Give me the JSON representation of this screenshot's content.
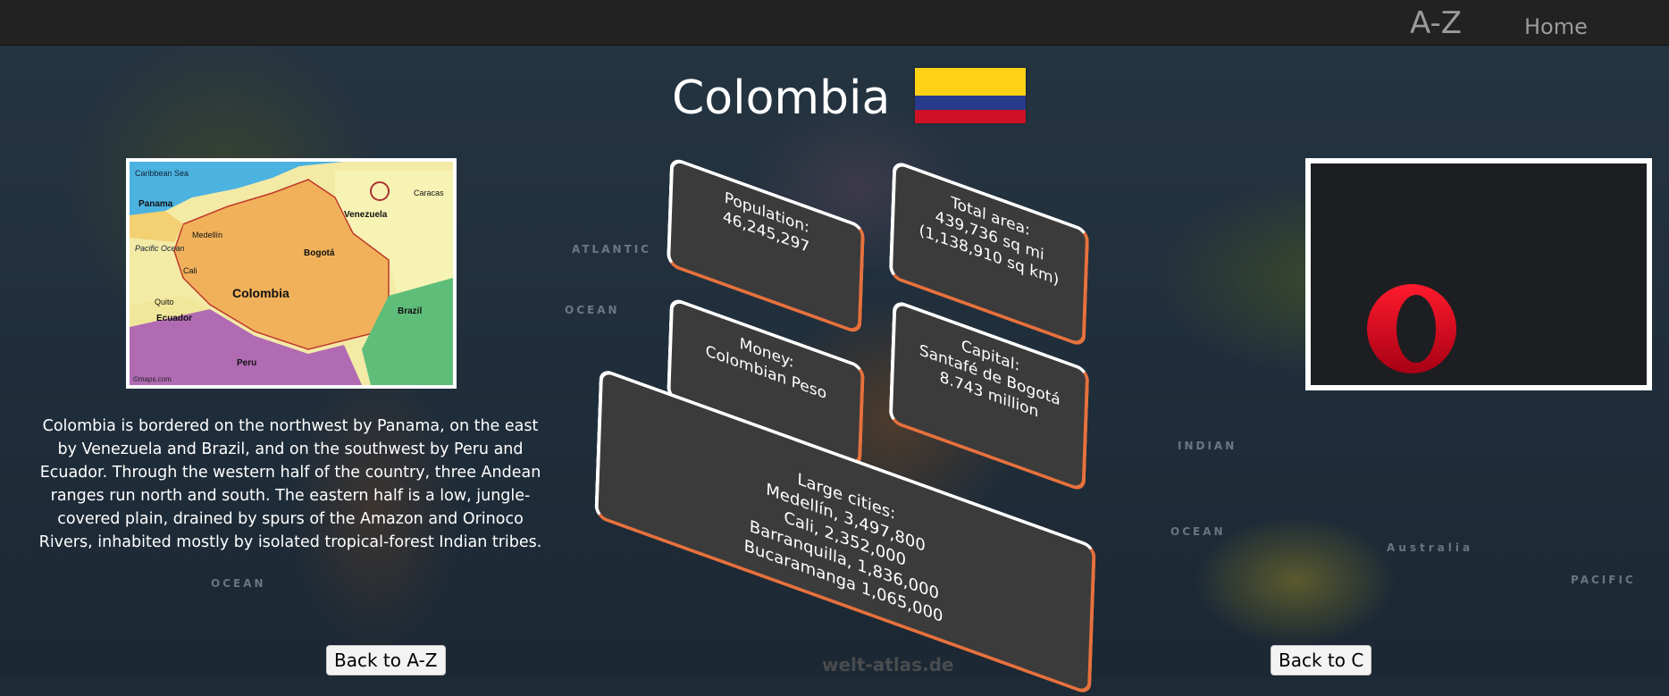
{
  "nav": {
    "az_label": "A-Z",
    "home_label": "Home"
  },
  "country": {
    "name": "Colombia"
  },
  "flag": {
    "colors": [
      "#fcd116",
      "#273a8c",
      "#ce1126"
    ]
  },
  "map": {
    "title": "Colombia",
    "labels": [
      "Caribbean Sea",
      "Panama",
      "Venezuela",
      "Pacific Ocean",
      "Bogotá",
      "Ecuador",
      "Peru",
      "Brazil",
      "Medellín",
      "Cali",
      "Quito",
      "Caracas"
    ],
    "credit": "©maps.com"
  },
  "background_labels": [
    "ATLANTIC",
    "OCEAN",
    "INDIAN",
    "OCEAN",
    "OCEAN",
    "PACIFIC",
    "Australia"
  ],
  "description": "Colombia is bordered on the northwest by Panama, on the east by Venezuela and Brazil, and on the southwest by Peru and Ecuador. Through the western half of the country, three Andean ranges run north and south. The eastern half is a low, jungle-covered plain, drained by spurs of the Amazon and Orinoco Rivers, inhabited mostly by isolated tropical-forest Indian tribes.",
  "cards": {
    "population": {
      "label": "Population:",
      "value": "46,245,297"
    },
    "area": {
      "label": "Total area:",
      "value1": "439,736 sq mi",
      "value2": "(1,138,910 sq km)"
    },
    "money": {
      "label": "Money:",
      "value": "Colombian Peso"
    },
    "capital": {
      "label": "Capital:",
      "value1": "Santafé de Bogotá",
      "value2": "8.743 million"
    },
    "cities": {
      "label": "Large cities:",
      "items": [
        "Medellín, 3,497,800",
        "Cali, 2,352,000",
        "Barranquilla, 1,836,000",
        "Bucaramanga 1,065,000"
      ]
    }
  },
  "video": {
    "icon": "opera-logo-icon"
  },
  "buttons": {
    "back_az": "Back to A-Z",
    "back_letter": "Back to C"
  },
  "watermark": "welt-atlas.de",
  "accent": "#e7713d"
}
